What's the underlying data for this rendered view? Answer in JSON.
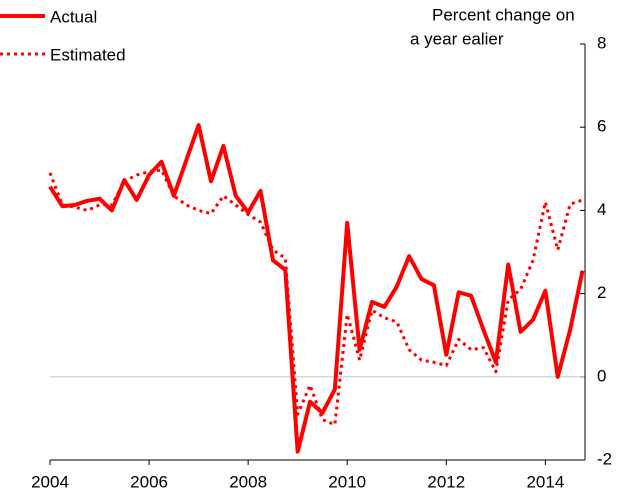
{
  "chart_data": {
    "type": "line",
    "y_label": [
      "Percent change on",
      "a year ealier"
    ],
    "x": [
      2004,
      2004.25,
      2004.5,
      2004.75,
      2005,
      2005.25,
      2005.5,
      2005.75,
      2006,
      2006.25,
      2006.5,
      2006.75,
      2007,
      2007.25,
      2007.5,
      2007.75,
      2008,
      2008.25,
      2008.5,
      2008.75,
      2009,
      2009.25,
      2009.5,
      2009.75,
      2010,
      2010.25,
      2010.5,
      2010.75,
      2011,
      2011.25,
      2011.5,
      2011.75,
      2012,
      2012.25,
      2012.5,
      2012.75,
      2013,
      2013.25,
      2013.5,
      2013.75,
      2014,
      2014.25,
      2014.5,
      2014.75
    ],
    "series": [
      {
        "name": "Actual",
        "color": "#ff0000",
        "style": "solid",
        "values": [
          4.57,
          4.1,
          4.13,
          4.23,
          4.28,
          4.0,
          4.73,
          4.25,
          4.85,
          5.17,
          4.35,
          5.2,
          6.05,
          4.7,
          5.55,
          4.35,
          3.95,
          4.47,
          2.8,
          2.57,
          -1.8,
          -0.6,
          -0.87,
          -0.3,
          3.7,
          0.65,
          1.8,
          1.68,
          2.17,
          2.9,
          2.35,
          2.2,
          0.53,
          2.03,
          1.95,
          1.13,
          0.35,
          2.7,
          1.08,
          1.37,
          2.07,
          0.0,
          1.13,
          2.55
        ]
      },
      {
        "name": "Estimated",
        "color": "#ff0000",
        "style": "dotted",
        "values": [
          4.9,
          4.13,
          4.08,
          4.0,
          4.13,
          4.13,
          4.7,
          4.85,
          4.93,
          4.97,
          4.35,
          4.13,
          4.0,
          3.92,
          4.35,
          4.13,
          3.9,
          3.72,
          3.05,
          2.85,
          -0.9,
          -0.2,
          -1.03,
          -1.15,
          1.5,
          0.4,
          1.6,
          1.42,
          1.32,
          0.65,
          0.4,
          0.35,
          0.27,
          0.9,
          0.65,
          0.7,
          0.12,
          1.85,
          2.1,
          2.8,
          4.2,
          3.05,
          4.15,
          4.25
        ]
      }
    ],
    "xlim": [
      2004,
      2014.8
    ],
    "xticks": [
      2004,
      2006,
      2008,
      2010,
      2012,
      2014
    ],
    "ylim": [
      -2,
      8
    ],
    "yticks": [
      -2,
      0,
      2,
      4,
      6,
      8
    ],
    "y_axis_side": "right",
    "zero_line": true,
    "legend": "top-left"
  }
}
